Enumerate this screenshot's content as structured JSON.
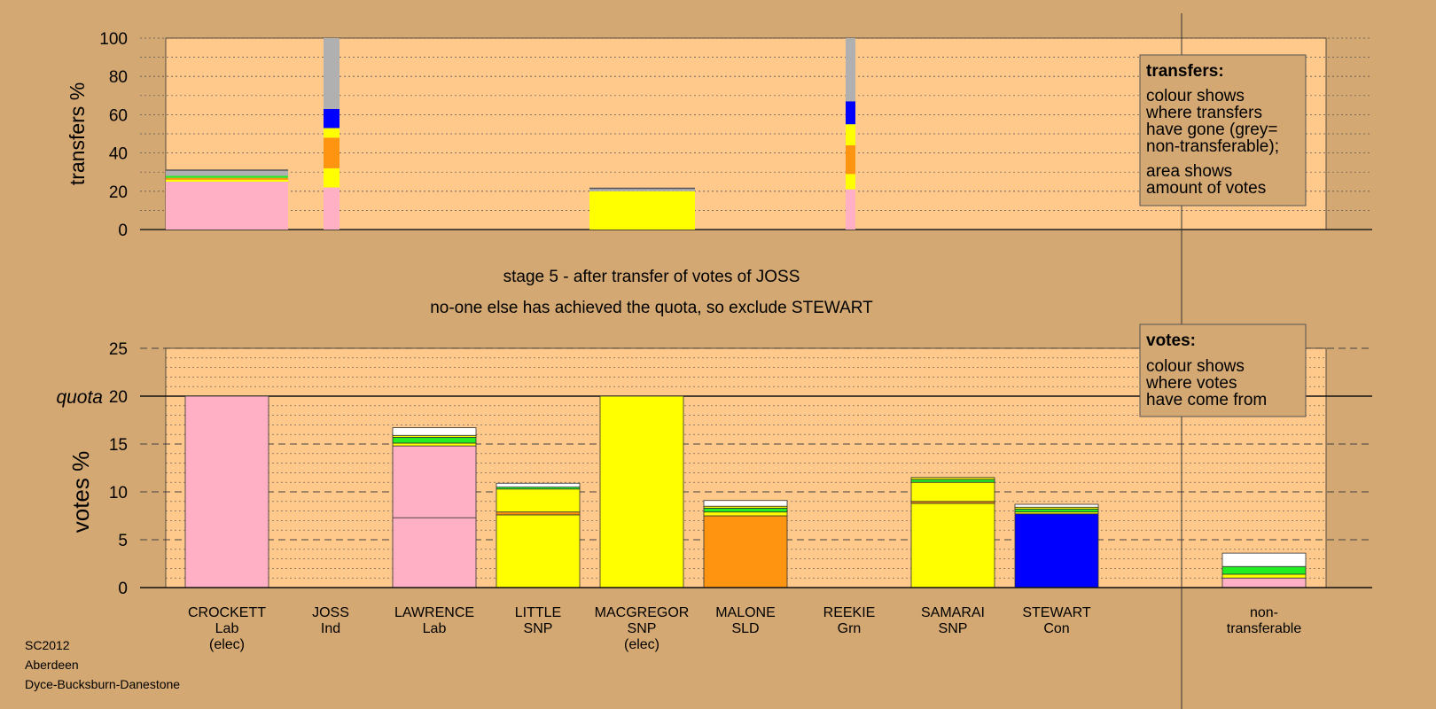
{
  "colors": {
    "background": "#d4a872",
    "plot_bg": "#ffc98c",
    "Lab": "#ffb0c4",
    "SNP": "#ffff00",
    "SLD": "#ff9410",
    "Con": "#0000ff",
    "Grn": "#22ee22",
    "Ind": "#ffffff",
    "nontransferable": "#b0b0b0"
  },
  "caption": {
    "stage": "stage 5 - after transfer of votes of JOSS",
    "action": "no-one else has achieved the quota, so exclude STEWART"
  },
  "footer": {
    "line1": "SC2012",
    "line2": "Aberdeen",
    "line3": "Dyce-Bucksburn-Danestone"
  },
  "legend_transfers": {
    "title": "transfers:",
    "line1": "colour shows",
    "line2": "where transfers",
    "line3": "have gone (grey=",
    "line4": "non-transferable);",
    "line5": "area shows",
    "line6": "amount of votes"
  },
  "legend_votes": {
    "title": "votes:",
    "line1": "colour shows",
    "line2": "where votes",
    "line3": "have come from"
  },
  "chart_data": [
    {
      "type": "bar",
      "ylabel": "transfers %",
      "ylim": [
        0,
        100
      ],
      "yticks": [
        0,
        20,
        40,
        60,
        80,
        100
      ],
      "grid": true,
      "bars": [
        {
          "label": "CROCKETT",
          "width": "wide",
          "segments": [
            {
              "party": "Lab",
              "value": 25
            },
            {
              "party": "SNP",
              "value": 1
            },
            {
              "party": "SLD",
              "value": 1
            },
            {
              "party": "Grn",
              "value": 1
            },
            {
              "party": "nontransferable",
              "value": 3
            }
          ]
        },
        {
          "label": "JOSS",
          "width": "narrow",
          "segments": [
            {
              "party": "Lab",
              "value": 22
            },
            {
              "party": "SNP",
              "value": 10
            },
            {
              "party": "SLD",
              "value": 16
            },
            {
              "party": "SNP",
              "value": 5
            },
            {
              "party": "Con",
              "value": 10
            },
            {
              "party": "nontransferable",
              "value": 37
            }
          ]
        },
        {
          "label": "MACGREGOR",
          "width": "wide",
          "segments": [
            {
              "party": "SNP",
              "value": 20
            },
            {
              "party": "nontransferable",
              "value": 1.5
            }
          ]
        },
        {
          "label": "REEKIE",
          "width": "narrow",
          "segments": [
            {
              "party": "Lab",
              "value": 21
            },
            {
              "party": "SNP",
              "value": 8
            },
            {
              "party": "SLD",
              "value": 15
            },
            {
              "party": "SNP",
              "value": 11
            },
            {
              "party": "Con",
              "value": 12
            },
            {
              "party": "nontransferable",
              "value": 33
            }
          ]
        }
      ]
    },
    {
      "type": "bar",
      "ylabel": "votes %",
      "ylim": [
        0,
        25
      ],
      "yticks": [
        0,
        5,
        10,
        15,
        20,
        25
      ],
      "quota": 20,
      "quota_label": "quota",
      "grid": true,
      "candidates": [
        {
          "name": "CROCKETT",
          "party": "Lab",
          "note": "(elec)",
          "segments": [
            {
              "party": "Lab",
              "value": 20
            }
          ]
        },
        {
          "name": "JOSS",
          "party": "Ind",
          "note": "",
          "segments": []
        },
        {
          "name": "LAWRENCE",
          "party": "Lab",
          "note": "",
          "segments": [
            {
              "party": "Lab",
              "value": 7.3
            },
            {
              "party": "Lab",
              "value": 7.5
            },
            {
              "party": "SNP",
              "value": 0.3
            },
            {
              "party": "Grn",
              "value": 0.6
            },
            {
              "party": "SNP",
              "value": 0.2
            },
            {
              "party": "Ind",
              "value": 0.8
            }
          ]
        },
        {
          "name": "LITTLE",
          "party": "SNP",
          "note": "",
          "segments": [
            {
              "party": "SNP",
              "value": 7.6
            },
            {
              "party": "SLD",
              "value": 0.3
            },
            {
              "party": "SNP",
              "value": 2.4
            },
            {
              "party": "Grn",
              "value": 0.2
            },
            {
              "party": "Ind",
              "value": 0.4
            }
          ]
        },
        {
          "name": "MACGREGOR",
          "party": "SNP",
          "note": "(elec)",
          "segments": [
            {
              "party": "SNP",
              "value": 20
            }
          ]
        },
        {
          "name": "MALONE",
          "party": "SLD",
          "note": "",
          "segments": [
            {
              "party": "SLD",
              "value": 7.5
            },
            {
              "party": "SNP",
              "value": 0.4
            },
            {
              "party": "Grn",
              "value": 0.4
            },
            {
              "party": "SNP",
              "value": 0.2
            },
            {
              "party": "Ind",
              "value": 0.6
            }
          ]
        },
        {
          "name": "REEKIE",
          "party": "Grn",
          "note": "",
          "segments": []
        },
        {
          "name": "SAMARAI",
          "party": "SNP",
          "note": "",
          "segments": [
            {
              "party": "SNP",
              "value": 8.8
            },
            {
              "party": "SLD",
              "value": 0.2
            },
            {
              "party": "SNP",
              "value": 2.0
            },
            {
              "party": "Grn",
              "value": 0.3
            },
            {
              "party": "SNP",
              "value": 0.2
            }
          ]
        },
        {
          "name": "STEWART",
          "party": "Con",
          "note": "",
          "segments": [
            {
              "party": "Con",
              "value": 7.7
            },
            {
              "party": "SNP",
              "value": 0.2
            },
            {
              "party": "Grn",
              "value": 0.3
            },
            {
              "party": "SNP",
              "value": 0.2
            },
            {
              "party": "Ind",
              "value": 0.3
            }
          ]
        },
        {
          "name": "non-",
          "party": "transferable",
          "note": "",
          "slot": "nontransferable",
          "segments": [
            {
              "party": "Lab",
              "value": 1.0
            },
            {
              "party": "SNP",
              "value": 0.4
            },
            {
              "party": "Grn",
              "value": 0.8
            },
            {
              "party": "Ind",
              "value": 1.4
            }
          ]
        }
      ]
    }
  ]
}
